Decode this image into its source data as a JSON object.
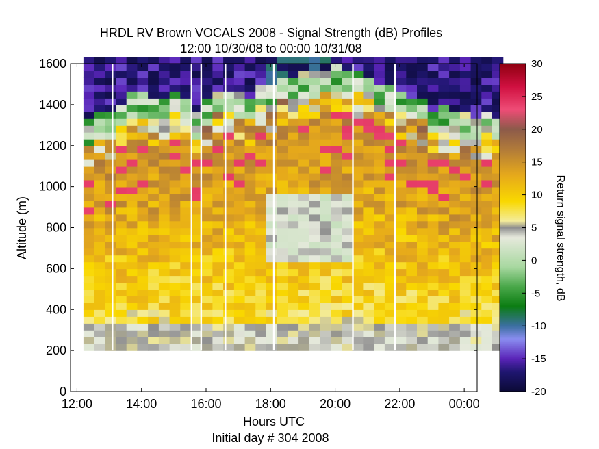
{
  "chart_data": {
    "type": "heatmap",
    "title": "HRDL RV Brown VOCALS 2008 - Signal Strength (dB) Profiles",
    "subtitle": "12:00 10/30/08 to 00:00 10/31/08",
    "xlabel": "Hours UTC",
    "xlabel2": "Initial day # 304  2008",
    "ylabel": "Altitude (m)",
    "xlim_hours": [
      11.8,
      24.4
    ],
    "ylim": [
      0,
      1600
    ],
    "x_ticks": [
      {
        "value": 12,
        "label": "12:00"
      },
      {
        "value": 14,
        "label": "14:00"
      },
      {
        "value": 16,
        "label": "16:00"
      },
      {
        "value": 18,
        "label": "18:00"
      },
      {
        "value": 20,
        "label": "20:00"
      },
      {
        "value": 22,
        "label": "22:00"
      },
      {
        "value": 24,
        "label": "00:00"
      }
    ],
    "y_ticks": [
      0,
      200,
      400,
      600,
      800,
      1000,
      1200,
      1400,
      1600
    ],
    "colorbar": {
      "label": "Return signal strength, dB",
      "range": [
        -20,
        30
      ],
      "ticks": [
        -20,
        -15,
        -10,
        -5,
        0,
        5,
        10,
        15,
        20,
        25,
        30
      ]
    },
    "grid": false,
    "data_altitude_range": [
      200,
      1600
    ],
    "profiles_per_hour": 3,
    "approx_cloud_top_m": [
      1140,
      1200,
      1180,
      1230,
      1280,
      1280,
      1250,
      1260,
      1290,
      1270,
      1180,
      1240,
      1290,
      1300,
      1280,
      1250,
      1330,
      1320,
      1350,
      1360,
      1380,
      1380,
      1400,
      1410,
      1400,
      1390,
      1370,
      1330,
      1310,
      1290,
      1270,
      1250,
      1200,
      1210,
      1190,
      1180,
      1170,
      1190,
      1160
    ]
  }
}
